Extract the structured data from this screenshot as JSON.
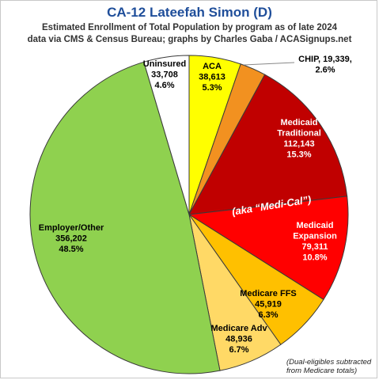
{
  "chart_data": {
    "type": "pie",
    "title": "CA-12 Lateefah Simon (D)",
    "subtitle_lines": [
      "Estimated Enrollment of Total Population by program as of late 2024",
      "data via CMS & Census Bureau; graphs by Charles Gaba / ACASignups.net"
    ],
    "slices": [
      {
        "name": "ACA",
        "value": 38613,
        "percent": "5.3%",
        "value_label": "38,613",
        "color": "#ffff00",
        "label_color": "#000000"
      },
      {
        "name": "CHIP",
        "value": 19339,
        "percent": "2.6%",
        "value_label": "19,339",
        "color": "#f29120",
        "label_color": "#000000"
      },
      {
        "name": "Medicaid Traditional",
        "value": 112143,
        "percent": "15.3%",
        "value_label": "112,143",
        "color": "#c00000",
        "label_color": "#ffffff"
      },
      {
        "name": "Medicaid Expansion",
        "value": 79311,
        "percent": "10.8%",
        "value_label": "79,311",
        "color": "#ff0000",
        "label_color": "#ffffff"
      },
      {
        "name": "Medicare FFS",
        "value": 45919,
        "percent": "6.3%",
        "value_label": "45,919",
        "color": "#ffc000",
        "label_color": "#000000"
      },
      {
        "name": "Medicare Adv",
        "value": 48936,
        "percent": "6.7%",
        "value_label": "48,936",
        "color": "#ffd966",
        "label_color": "#000000"
      },
      {
        "name": "Employer/Other",
        "value": 356202,
        "percent": "48.5%",
        "value_label": "356,202",
        "color": "#8fd14f",
        "label_color": "#000000"
      },
      {
        "name": "Uninsured",
        "value": 33708,
        "percent": "4.6%",
        "value_label": "33,708",
        "color": "#ffffff",
        "label_color": "#000000"
      }
    ],
    "slice_label_lines": [
      [
        "ACA",
        "38,613",
        "5.3%"
      ],
      [
        "CHIP, 19,339,",
        "2.6%"
      ],
      [
        "Medicaid",
        "Traditional",
        "112,143",
        "15.3%"
      ],
      [
        "Medicaid",
        "Expansion",
        "79,311",
        "10.8%"
      ],
      [
        "Medicare FFS",
        "45,919",
        "6.3%"
      ],
      [
        "Medicare Adv",
        "48,936",
        "6.7%"
      ],
      [
        "Employer/Other",
        "356,202",
        "48.5%"
      ],
      [
        "Uninsured",
        "33,708",
        "4.6%"
      ]
    ],
    "annotation": "(aka “Medi-Cal”)",
    "footnote_lines": [
      "(Dual-eligibles subtracted",
      "from Medicare totals)"
    ]
  }
}
